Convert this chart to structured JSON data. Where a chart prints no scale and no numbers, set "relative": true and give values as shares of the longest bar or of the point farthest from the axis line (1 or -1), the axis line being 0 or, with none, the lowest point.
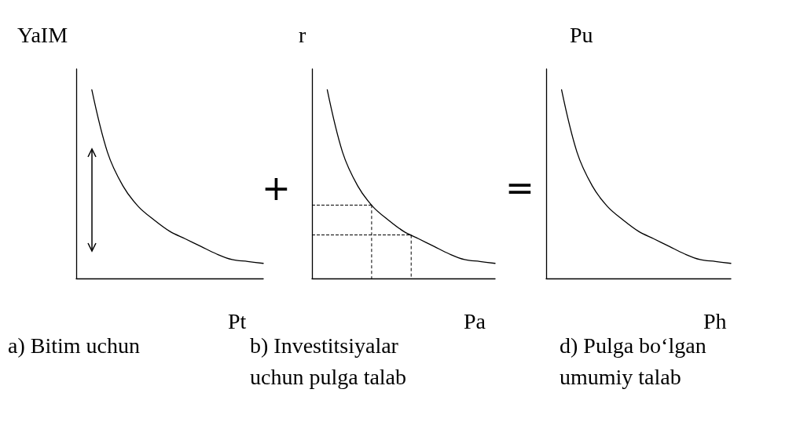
{
  "chart_data": [
    {
      "type": "line",
      "title": "a) Bitim uchun",
      "ylabel": "YaIM",
      "xlabel": "Pt",
      "relative": true,
      "tick_labels": false,
      "marker": "none",
      "annotations": [
        "+"
      ],
      "categories": [
        null,
        null,
        null,
        null,
        null,
        null,
        null,
        null,
        null,
        null,
        null,
        null,
        null
      ],
      "series": [
        {
          "color": "#000000",
          "values": [
            null,
            1,
            0.67,
            0.49,
            0.38,
            0.31,
            0.25,
            0.21,
            0.17,
            0.13,
            0.1,
            0.09,
            0.08
          ]
        }
      ]
    },
    {
      "type": "line",
      "title": "b) Investitsiyalar uchun pulga talab",
      "ylabel": "r",
      "xlabel": "Pa",
      "relative": true,
      "tick_labels": false,
      "marker": "none",
      "annotations": [
        "="
      ],
      "categories": [
        null,
        null,
        null,
        null,
        null,
        null,
        null,
        null,
        null,
        null,
        null,
        null,
        null
      ],
      "series": [
        {
          "color": "#000000",
          "values": [
            null,
            1,
            0.67,
            0.49,
            0.38,
            0.31,
            0.25,
            0.21,
            0.17,
            0.13,
            0.1,
            0.09,
            0.08
          ]
        }
      ],
      "ref_lines": [
        {
          "axis": "y",
          "value": 0.39,
          "color": "#000000",
          "line_style": "dashed"
        },
        {
          "axis": "y",
          "value": 0.23,
          "color": "#000000",
          "line_style": "dashed"
        }
      ]
    },
    {
      "type": "line",
      "title": "d) Pulga bo‘lgan umumiy talab",
      "ylabel": "Pu",
      "xlabel": "Ph",
      "relative": true,
      "tick_labels": false,
      "marker": "none",
      "categories": [
        null,
        null,
        null,
        null,
        null,
        null,
        null,
        null,
        null,
        null,
        null,
        null,
        null
      ],
      "series": [
        {
          "color": "#000000",
          "values": [
            null,
            1,
            0.67,
            0.49,
            0.38,
            0.31,
            0.25,
            0.21,
            0.17,
            0.13,
            0.1,
            0.09,
            0.08
          ]
        }
      ]
    }
  ]
}
